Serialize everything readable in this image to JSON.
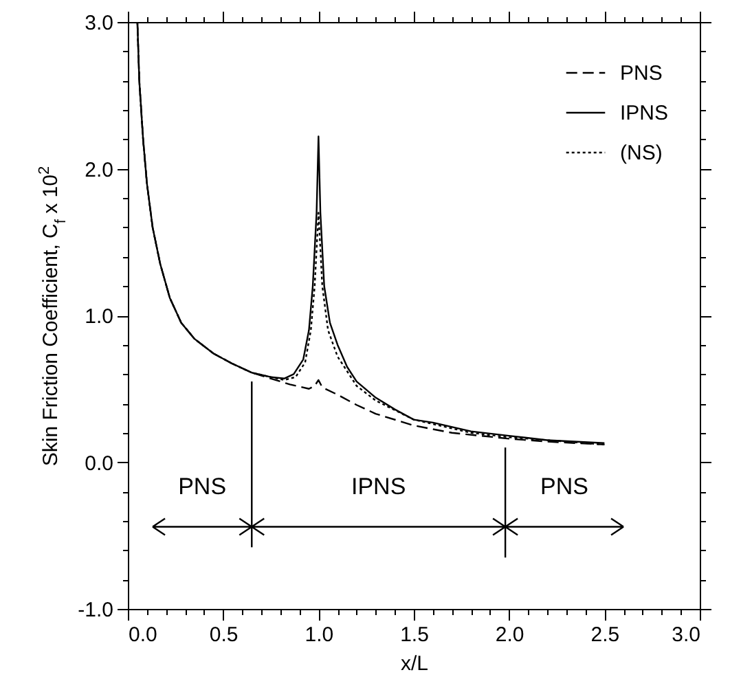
{
  "chart_data": {
    "type": "line",
    "xlabel": "x/L",
    "ylabel": "Skin Friction Coefficient, C$_{f}$ x 10$^{2}$",
    "xlim": [
      0,
      3
    ],
    "ylim": [
      -1,
      3
    ],
    "xticks": [
      {
        "value": 0,
        "label": "0.0"
      },
      {
        "value": 0.1,
        "label": null
      },
      {
        "value": 0.2,
        "label": null
      },
      {
        "value": 0.3,
        "label": null
      },
      {
        "value": 0.4,
        "label": null
      },
      {
        "value": 0.5,
        "label": "0.5"
      },
      {
        "value": 0.6,
        "label": null
      },
      {
        "value": 0.7,
        "label": null
      },
      {
        "value": 0.8,
        "label": null
      },
      {
        "value": 0.9,
        "label": null
      },
      {
        "value": 1,
        "label": "1.0"
      },
      {
        "value": 1.1,
        "label": null
      },
      {
        "value": 1.2,
        "label": null
      },
      {
        "value": 1.3,
        "label": null
      },
      {
        "value": 1.4,
        "label": null
      },
      {
        "value": 1.5,
        "label": "1.5"
      },
      {
        "value": 1.6,
        "label": null
      },
      {
        "value": 1.7,
        "label": null
      },
      {
        "value": 1.8,
        "label": null
      },
      {
        "value": 1.9,
        "label": null
      },
      {
        "value": 2,
        "label": "2.0"
      },
      {
        "value": 2.1,
        "label": null
      },
      {
        "value": 2.2,
        "label": null
      },
      {
        "value": 2.3,
        "label": null
      },
      {
        "value": 2.4,
        "label": null
      },
      {
        "value": 2.5,
        "label": "2.5"
      },
      {
        "value": 2.6,
        "label": null
      },
      {
        "value": 2.7,
        "label": null
      },
      {
        "value": 2.8,
        "label": null
      },
      {
        "value": 2.9,
        "label": null
      },
      {
        "value": 3,
        "label": "3.0"
      }
    ],
    "yticks": [
      {
        "value": -1,
        "label": "-1.0"
      },
      {
        "value": -0.8,
        "label": null
      },
      {
        "value": -0.6,
        "label": null
      },
      {
        "value": -0.4,
        "label": null
      },
      {
        "value": -0.2,
        "label": null
      },
      {
        "value": 0,
        "label": "0.0"
      },
      {
        "value": 0.2,
        "label": null
      },
      {
        "value": 0.4,
        "label": null
      },
      {
        "value": 0.6,
        "label": null
      },
      {
        "value": 0.8,
        "label": null
      },
      {
        "value": 1,
        "label": "1.0"
      },
      {
        "value": 1.2,
        "label": null
      },
      {
        "value": 1.4,
        "label": null
      },
      {
        "value": 1.6,
        "label": null
      },
      {
        "value": 1.8,
        "label": null
      },
      {
        "value": 2,
        "label": "2.0"
      },
      {
        "value": 2.2,
        "label": null
      },
      {
        "value": 2.4,
        "label": null
      },
      {
        "value": 2.6,
        "label": null
      },
      {
        "value": 2.8,
        "label": null
      },
      {
        "value": 3,
        "label": "3.0"
      }
    ],
    "legend": "top right",
    "grid": false,
    "series": [
      {
        "name": "PNS",
        "color": "#000000",
        "line_style": "dashed",
        "x": [
          0.05,
          0.06,
          0.08,
          0.1,
          0.13,
          0.17,
          0.22,
          0.28,
          0.35,
          0.45,
          0.55,
          0.65,
          0.75,
          0.85,
          0.95,
          0.98,
          1.0,
          1.02,
          1.1,
          1.2,
          1.3,
          1.5,
          1.7,
          2.0,
          2.2,
          2.5
        ],
        "values": [
          3.0,
          2.6,
          2.2,
          1.9,
          1.6,
          1.35,
          1.12,
          0.95,
          0.84,
          0.74,
          0.67,
          0.61,
          0.57,
          0.53,
          0.5,
          0.52,
          0.56,
          0.51,
          0.46,
          0.39,
          0.33,
          0.25,
          0.2,
          0.16,
          0.14,
          0.12
        ]
      },
      {
        "name": "IPNS",
        "color": "#000000",
        "line_style": "solid",
        "x": [
          0.05,
          0.06,
          0.08,
          0.1,
          0.13,
          0.17,
          0.22,
          0.28,
          0.35,
          0.45,
          0.55,
          0.65,
          0.75,
          0.82,
          0.87,
          0.92,
          0.95,
          0.97,
          0.99,
          1.0,
          1.01,
          1.03,
          1.06,
          1.1,
          1.15,
          1.2,
          1.3,
          1.4,
          1.5,
          1.6,
          1.8,
          2.0,
          2.2,
          2.5
        ],
        "values": [
          3.0,
          2.6,
          2.2,
          1.9,
          1.6,
          1.35,
          1.12,
          0.95,
          0.84,
          0.74,
          0.67,
          0.61,
          0.58,
          0.57,
          0.6,
          0.7,
          0.9,
          1.2,
          1.7,
          2.22,
          1.7,
          1.2,
          0.95,
          0.8,
          0.65,
          0.55,
          0.44,
          0.36,
          0.29,
          0.27,
          0.21,
          0.18,
          0.15,
          0.13
        ]
      },
      {
        "name": "(NS)",
        "color": "#000000",
        "line_style": "dotted",
        "x": [
          0.05,
          0.06,
          0.08,
          0.1,
          0.13,
          0.17,
          0.22,
          0.28,
          0.35,
          0.45,
          0.55,
          0.65,
          0.75,
          0.82,
          0.88,
          0.93,
          0.96,
          0.98,
          1.0,
          1.02,
          1.05,
          1.1,
          1.2,
          1.3,
          1.5,
          1.8,
          2.0,
          2.5
        ],
        "values": [
          3.0,
          2.6,
          2.2,
          1.9,
          1.6,
          1.35,
          1.12,
          0.95,
          0.84,
          0.74,
          0.67,
          0.61,
          0.58,
          0.56,
          0.58,
          0.68,
          0.9,
          1.2,
          1.7,
          1.2,
          0.9,
          0.72,
          0.52,
          0.42,
          0.29,
          0.2,
          0.17,
          0.12
        ]
      }
    ],
    "annotations": [
      "PNS",
      "IPNS",
      "PNS"
    ]
  }
}
